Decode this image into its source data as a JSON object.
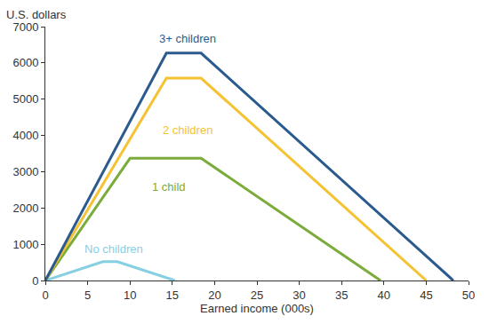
{
  "chart_data": {
    "type": "line",
    "y_label": "U.S. dollars",
    "x_label": "Earned income (000s)",
    "xlim": [
      0,
      50
    ],
    "xticks": [
      0,
      5,
      10,
      15,
      20,
      25,
      30,
      35,
      40,
      45,
      50
    ],
    "ylim": [
      0,
      7000
    ],
    "yticks": [
      0,
      1000,
      2000,
      3000,
      4000,
      5000,
      6000,
      7000
    ],
    "grid": false,
    "series": [
      {
        "name": "3+ children",
        "color": "#2b5b8e",
        "x": [
          0,
          14.3,
          18.4,
          48.2
        ],
        "values": [
          0,
          6270,
          6270,
          0
        ]
      },
      {
        "name": "2 children",
        "color": "#f4c232",
        "x": [
          0,
          14.3,
          18.4,
          45.0
        ],
        "values": [
          0,
          5580,
          5580,
          0
        ]
      },
      {
        "name": "1 child",
        "color": "#7bab3b",
        "x": [
          0,
          10.0,
          18.4,
          39.6
        ],
        "values": [
          0,
          3370,
          3370,
          0
        ]
      },
      {
        "name": "No children",
        "color": "#86cfe3",
        "x": [
          0,
          6.8,
          8.5,
          15.3
        ],
        "values": [
          0,
          520,
          520,
          0
        ]
      }
    ]
  }
}
